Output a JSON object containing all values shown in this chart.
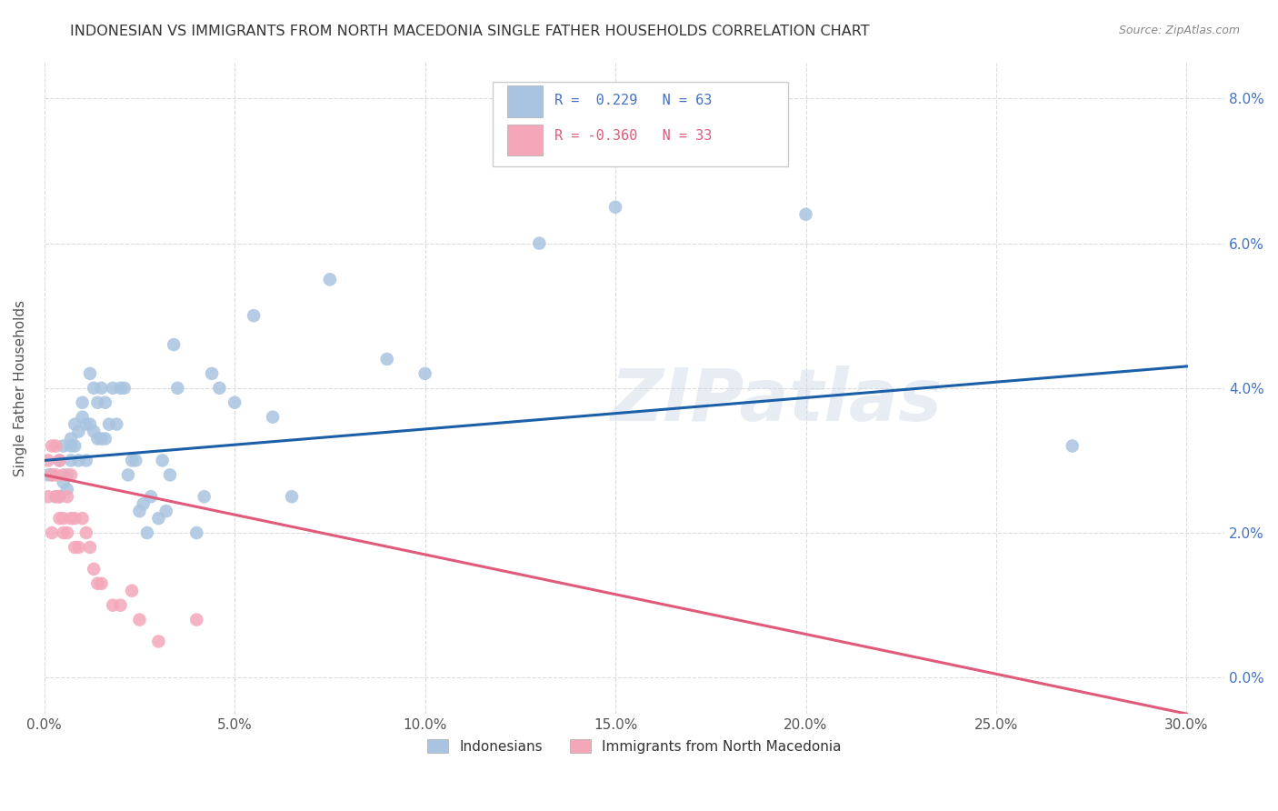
{
  "title": "INDONESIAN VS IMMIGRANTS FROM NORTH MACEDONIA SINGLE FATHER HOUSEHOLDS CORRELATION CHART",
  "source": "Source: ZipAtlas.com",
  "ylabel": "Single Father Households",
  "legend_labels": [
    "Indonesians",
    "Immigrants from North Macedonia"
  ],
  "blue_color": "#a8c4e0",
  "pink_color": "#f4a7b9",
  "line_blue": "#1a5fa8",
  "line_pink": "#e05a7a",
  "indonesian_x": [
    0.001,
    0.002,
    0.003,
    0.004,
    0.004,
    0.005,
    0.005,
    0.006,
    0.006,
    0.007,
    0.007,
    0.007,
    0.008,
    0.008,
    0.009,
    0.009,
    0.01,
    0.01,
    0.011,
    0.011,
    0.012,
    0.012,
    0.013,
    0.013,
    0.014,
    0.014,
    0.015,
    0.015,
    0.016,
    0.016,
    0.017,
    0.018,
    0.019,
    0.02,
    0.021,
    0.022,
    0.023,
    0.024,
    0.025,
    0.026,
    0.027,
    0.028,
    0.03,
    0.031,
    0.032,
    0.033,
    0.034,
    0.035,
    0.04,
    0.042,
    0.044,
    0.046,
    0.05,
    0.055,
    0.06,
    0.065,
    0.075,
    0.09,
    0.1,
    0.13,
    0.15,
    0.2,
    0.27
  ],
  "indonesian_y": [
    0.028,
    0.028,
    0.025,
    0.03,
    0.025,
    0.027,
    0.032,
    0.028,
    0.026,
    0.03,
    0.033,
    0.032,
    0.032,
    0.035,
    0.03,
    0.034,
    0.038,
    0.036,
    0.03,
    0.035,
    0.035,
    0.042,
    0.04,
    0.034,
    0.038,
    0.033,
    0.033,
    0.04,
    0.033,
    0.038,
    0.035,
    0.04,
    0.035,
    0.04,
    0.04,
    0.028,
    0.03,
    0.03,
    0.023,
    0.024,
    0.02,
    0.025,
    0.022,
    0.03,
    0.023,
    0.028,
    0.046,
    0.04,
    0.02,
    0.025,
    0.042,
    0.04,
    0.038,
    0.05,
    0.036,
    0.025,
    0.055,
    0.044,
    0.042,
    0.06,
    0.065,
    0.064,
    0.032
  ],
  "macedonian_x": [
    0.001,
    0.001,
    0.002,
    0.002,
    0.002,
    0.003,
    0.003,
    0.003,
    0.004,
    0.004,
    0.004,
    0.005,
    0.005,
    0.005,
    0.006,
    0.006,
    0.007,
    0.007,
    0.008,
    0.008,
    0.009,
    0.01,
    0.011,
    0.012,
    0.013,
    0.014,
    0.015,
    0.018,
    0.02,
    0.023,
    0.025,
    0.03,
    0.04
  ],
  "macedonian_y": [
    0.03,
    0.025,
    0.032,
    0.028,
    0.02,
    0.028,
    0.025,
    0.032,
    0.025,
    0.022,
    0.03,
    0.028,
    0.022,
    0.02,
    0.025,
    0.02,
    0.022,
    0.028,
    0.022,
    0.018,
    0.018,
    0.022,
    0.02,
    0.018,
    0.015,
    0.013,
    0.013,
    0.01,
    0.01,
    0.012,
    0.008,
    0.005,
    0.008
  ],
  "xlim": [
    0.0,
    0.31
  ],
  "ylim": [
    -0.005,
    0.085
  ],
  "blue_line_x": [
    0.0,
    0.3
  ],
  "blue_line_y": [
    0.03,
    0.043
  ],
  "pink_line_x": [
    0.0,
    0.3
  ],
  "pink_line_y": [
    0.028,
    -0.005
  ],
  "watermark": "ZIPatlas",
  "background_color": "#ffffff",
  "ytick_vals": [
    0.0,
    0.02,
    0.04,
    0.06,
    0.08
  ],
  "ytick_labels": [
    "0.0%",
    "2.0%",
    "4.0%",
    "6.0%",
    "8.0%"
  ],
  "xtick_vals": [
    0.0,
    0.05,
    0.1,
    0.15,
    0.2,
    0.25,
    0.3
  ],
  "xtick_labels": [
    "0.0%",
    "5.0%",
    "10.0%",
    "15.0%",
    "20.0%",
    "25.0%",
    "30.0%"
  ]
}
